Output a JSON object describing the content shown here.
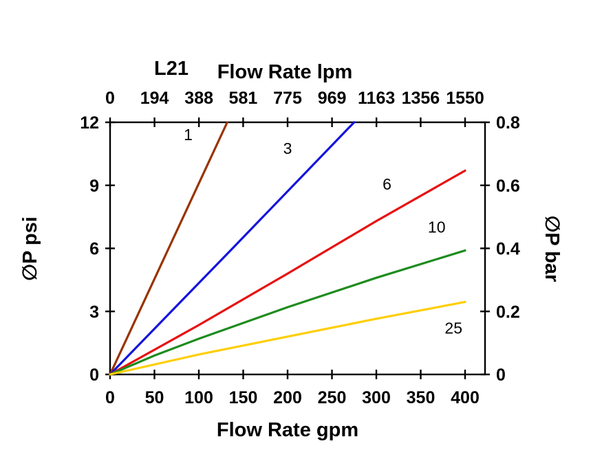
{
  "page": {
    "background": "#FFFFFF"
  },
  "chart_data": {
    "type": "line",
    "model_label": "L21",
    "top_axis_title": "Flow Rate lpm",
    "bottom_axis_title": "Flow Rate gpm",
    "left_axis_title": "∅P psi",
    "right_axis_title": "∅P bar",
    "axis_color": "#000000",
    "text_color": "#000000",
    "grid": false,
    "legend": "inline-labels",
    "axes": {
      "x_bottom": {
        "unit": "gpm",
        "ticks": [
          0,
          50,
          100,
          150,
          200,
          250,
          300,
          350,
          400
        ],
        "tick_max": 400,
        "range": [
          0,
          422
        ]
      },
      "x_top": {
        "unit": "lpm",
        "ticks": [
          0,
          194,
          388,
          581,
          775,
          969,
          1163,
          1356,
          1550
        ],
        "tick_max": 1550,
        "range": [
          0,
          1636
        ]
      },
      "y_left": {
        "unit": "psi",
        "ticks": [
          0,
          3,
          6,
          9,
          12
        ],
        "range": [
          0,
          12
        ]
      },
      "y_right": {
        "unit": "bar",
        "ticks": [
          0,
          0.2,
          0.4,
          0.6,
          0.8
        ],
        "range": [
          0,
          0.8
        ]
      }
    },
    "series": [
      {
        "name": "1",
        "color": "#993300",
        "points_gpm_psi": [
          [
            0,
            0
          ],
          [
            66,
            6.0
          ],
          [
            132,
            12
          ]
        ],
        "label_pos_gpm_psi": [
          88,
          11.15
        ]
      },
      {
        "name": "3",
        "color": "#1414DD",
        "points_gpm_psi": [
          [
            0,
            0
          ],
          [
            138,
            6.0
          ],
          [
            275,
            12
          ]
        ],
        "label_pos_gpm_psi": [
          200,
          10.5
        ]
      },
      {
        "name": "6",
        "color": "#E81010",
        "points_gpm_psi": [
          [
            0,
            0
          ],
          [
            100,
            2.35
          ],
          [
            200,
            4.8
          ],
          [
            300,
            7.3
          ],
          [
            400,
            9.7
          ]
        ],
        "label_pos_gpm_psi": [
          312,
          8.8
        ]
      },
      {
        "name": "10",
        "color": "#1E8C1E",
        "points_gpm_psi": [
          [
            0,
            0
          ],
          [
            50,
            0.9
          ],
          [
            100,
            1.7
          ],
          [
            200,
            3.2
          ],
          [
            300,
            4.6
          ],
          [
            400,
            5.9
          ]
        ],
        "label_pos_gpm_psi": [
          368,
          6.75
        ]
      },
      {
        "name": "25",
        "color": "#FFCE00",
        "points_gpm_psi": [
          [
            0,
            0
          ],
          [
            100,
            0.95
          ],
          [
            200,
            1.8
          ],
          [
            300,
            2.65
          ],
          [
            400,
            3.45
          ]
        ],
        "label_pos_gpm_psi": [
          387,
          1.95
        ]
      }
    ]
  }
}
